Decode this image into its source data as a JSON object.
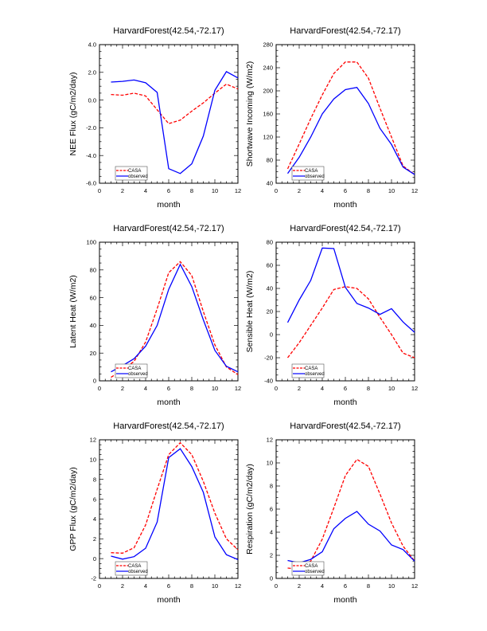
{
  "chart_data": [
    {
      "type": "line",
      "title": "HarvardForest(42.54,-72.17)",
      "xlabel": "month",
      "ylabel": "NEE Flux (gC/m2/day)",
      "xlim": [
        0,
        12
      ],
      "xticks": [
        "0",
        "2",
        "4",
        "6",
        "8",
        "10",
        "12"
      ],
      "ylim": [
        -6,
        4
      ],
      "yticks": [
        "-6.0",
        "-4.0",
        "-2.0",
        "0.0",
        "2.0",
        "4.0"
      ],
      "legend": "bottom-left",
      "x": [
        1,
        2,
        3,
        4,
        5,
        6,
        7,
        8,
        9,
        10,
        11,
        12
      ],
      "series": [
        {
          "name": "CASA",
          "color": "#ff0000",
          "dash": true,
          "values": [
            0.4,
            0.35,
            0.5,
            0.3,
            -0.7,
            -1.7,
            -1.45,
            -0.8,
            -0.2,
            0.5,
            1.15,
            0.8
          ]
        },
        {
          "name": "observed",
          "color": "#0000ff",
          "dash": false,
          "values": [
            1.3,
            1.35,
            1.45,
            1.25,
            0.55,
            -4.95,
            -5.3,
            -4.6,
            -2.6,
            0.7,
            2.05,
            1.6
          ]
        }
      ]
    },
    {
      "type": "line",
      "title": "HarvardForest(42.54,-72.17)",
      "xlabel": "month",
      "ylabel": "Shortwave Incoming (W/m2)",
      "xlim": [
        0,
        12
      ],
      "xticks": [
        "0",
        "2",
        "4",
        "6",
        "8",
        "10",
        "12"
      ],
      "ylim": [
        40,
        280
      ],
      "yticks": [
        "40",
        "80",
        "120",
        "160",
        "200",
        "240",
        "280"
      ],
      "legend": "bottom-left",
      "x": [
        1,
        2,
        3,
        4,
        5,
        6,
        7,
        8,
        9,
        10,
        11,
        12
      ],
      "series": [
        {
          "name": "CASA",
          "color": "#ff0000",
          "dash": true,
          "values": [
            65,
            108,
            152,
            193,
            230,
            250,
            250,
            222,
            170,
            120,
            70,
            55
          ]
        },
        {
          "name": "observed",
          "color": "#0000ff",
          "dash": false,
          "values": [
            57,
            85,
            120,
            160,
            186,
            202,
            206,
            178,
            135,
            107,
            68,
            55
          ]
        }
      ]
    },
    {
      "type": "line",
      "title": "HarvardForest(42.54,-72.17)",
      "xlabel": "month",
      "ylabel": "Latent Heat (W/m2)",
      "xlim": [
        0,
        12
      ],
      "xticks": [
        "0",
        "2",
        "4",
        "6",
        "8",
        "10",
        "12"
      ],
      "ylim": [
        0,
        100
      ],
      "yticks": [
        "0",
        "20",
        "40",
        "60",
        "80",
        "100"
      ],
      "legend": "bottom-left",
      "x": [
        1,
        2,
        3,
        4,
        5,
        6,
        7,
        8,
        9,
        10,
        11,
        12
      ],
      "series": [
        {
          "name": "CASA",
          "color": "#ff0000",
          "dash": true,
          "values": [
            2.5,
            8,
            14,
            28,
            52,
            78,
            86,
            76,
            50,
            26,
            10,
            4.5
          ]
        },
        {
          "name": "observed",
          "color": "#0000ff",
          "dash": false,
          "values": [
            6.5,
            11,
            16,
            25,
            40,
            66,
            84,
            68,
            44,
            22,
            10.5,
            6.5
          ]
        }
      ]
    },
    {
      "type": "line",
      "title": "HarvardForest(42.54,-72.17)",
      "xlabel": "month",
      "ylabel": "Sensible Heat (W/m2)",
      "xlim": [
        0,
        12
      ],
      "xticks": [
        "0",
        "2",
        "4",
        "6",
        "8",
        "10",
        "12"
      ],
      "ylim": [
        -40,
        80
      ],
      "yticks": [
        "-40",
        "-20",
        "0",
        "20",
        "40",
        "60",
        "80"
      ],
      "legend": "bottom-left",
      "x": [
        1,
        2,
        3,
        4,
        5,
        6,
        7,
        8,
        9,
        10,
        11,
        12
      ],
      "series": [
        {
          "name": "CASA",
          "color": "#ff0000",
          "dash": true,
          "values": [
            -20,
            -7,
            8,
            23,
            39,
            41.5,
            40,
            31,
            15,
            0,
            -16,
            -20
          ]
        },
        {
          "name": "observed",
          "color": "#0000ff",
          "dash": false,
          "values": [
            10.5,
            30,
            47,
            75,
            74.5,
            41,
            27,
            23,
            17.5,
            22.5,
            11,
            2
          ]
        }
      ]
    },
    {
      "type": "line",
      "title": "HarvardForest(42.54,-72.17)",
      "xlabel": "month",
      "ylabel": "GPP Flux (gC/m2/day)",
      "xlim": [
        0,
        12
      ],
      "xticks": [
        "0",
        "2",
        "4",
        "6",
        "8",
        "10",
        "12"
      ],
      "ylim": [
        -2,
        12
      ],
      "yticks": [
        "-2",
        "0",
        "2",
        "4",
        "6",
        "8",
        "10",
        "12"
      ],
      "legend": "bottom-left",
      "x": [
        1,
        2,
        3,
        4,
        5,
        6,
        7,
        8,
        9,
        10,
        11,
        12
      ],
      "series": [
        {
          "name": "CASA",
          "color": "#ff0000",
          "dash": true,
          "values": [
            0.6,
            0.55,
            1.1,
            3.4,
            7,
            10.5,
            11.7,
            10.5,
            7.8,
            4.6,
            2.0,
            0.9
          ]
        },
        {
          "name": "observed",
          "color": "#0000ff",
          "dash": false,
          "values": [
            0.25,
            -0.05,
            0.2,
            1.05,
            3.7,
            10.2,
            11.1,
            9.3,
            6.7,
            2.2,
            0.4,
            -0.1
          ]
        }
      ]
    },
    {
      "type": "line",
      "title": "HarvardForest(42.54,-72.17)",
      "xlabel": "month",
      "ylabel": "Respiration (gC/m2/day)",
      "xlim": [
        0,
        12
      ],
      "xticks": [
        "0",
        "2",
        "4",
        "6",
        "8",
        "10",
        "12"
      ],
      "ylim": [
        0,
        12
      ],
      "yticks": [
        "0",
        "2",
        "4",
        "6",
        "8",
        "10",
        "12"
      ],
      "legend": "bottom-left",
      "x": [
        1,
        2,
        3,
        4,
        5,
        6,
        7,
        8,
        9,
        10,
        11,
        12
      ],
      "series": [
        {
          "name": "CASA",
          "color": "#ff0000",
          "dash": true,
          "values": [
            0.9,
            0.8,
            1.5,
            3.4,
            6.1,
            8.9,
            10.3,
            9.7,
            7.3,
            4.8,
            2.8,
            1.5
          ]
        },
        {
          "name": "observed",
          "color": "#0000ff",
          "dash": false,
          "values": [
            1.55,
            1.35,
            1.65,
            2.3,
            4.3,
            5.2,
            5.8,
            4.7,
            4.1,
            2.9,
            2.5,
            1.5
          ]
        }
      ]
    }
  ]
}
